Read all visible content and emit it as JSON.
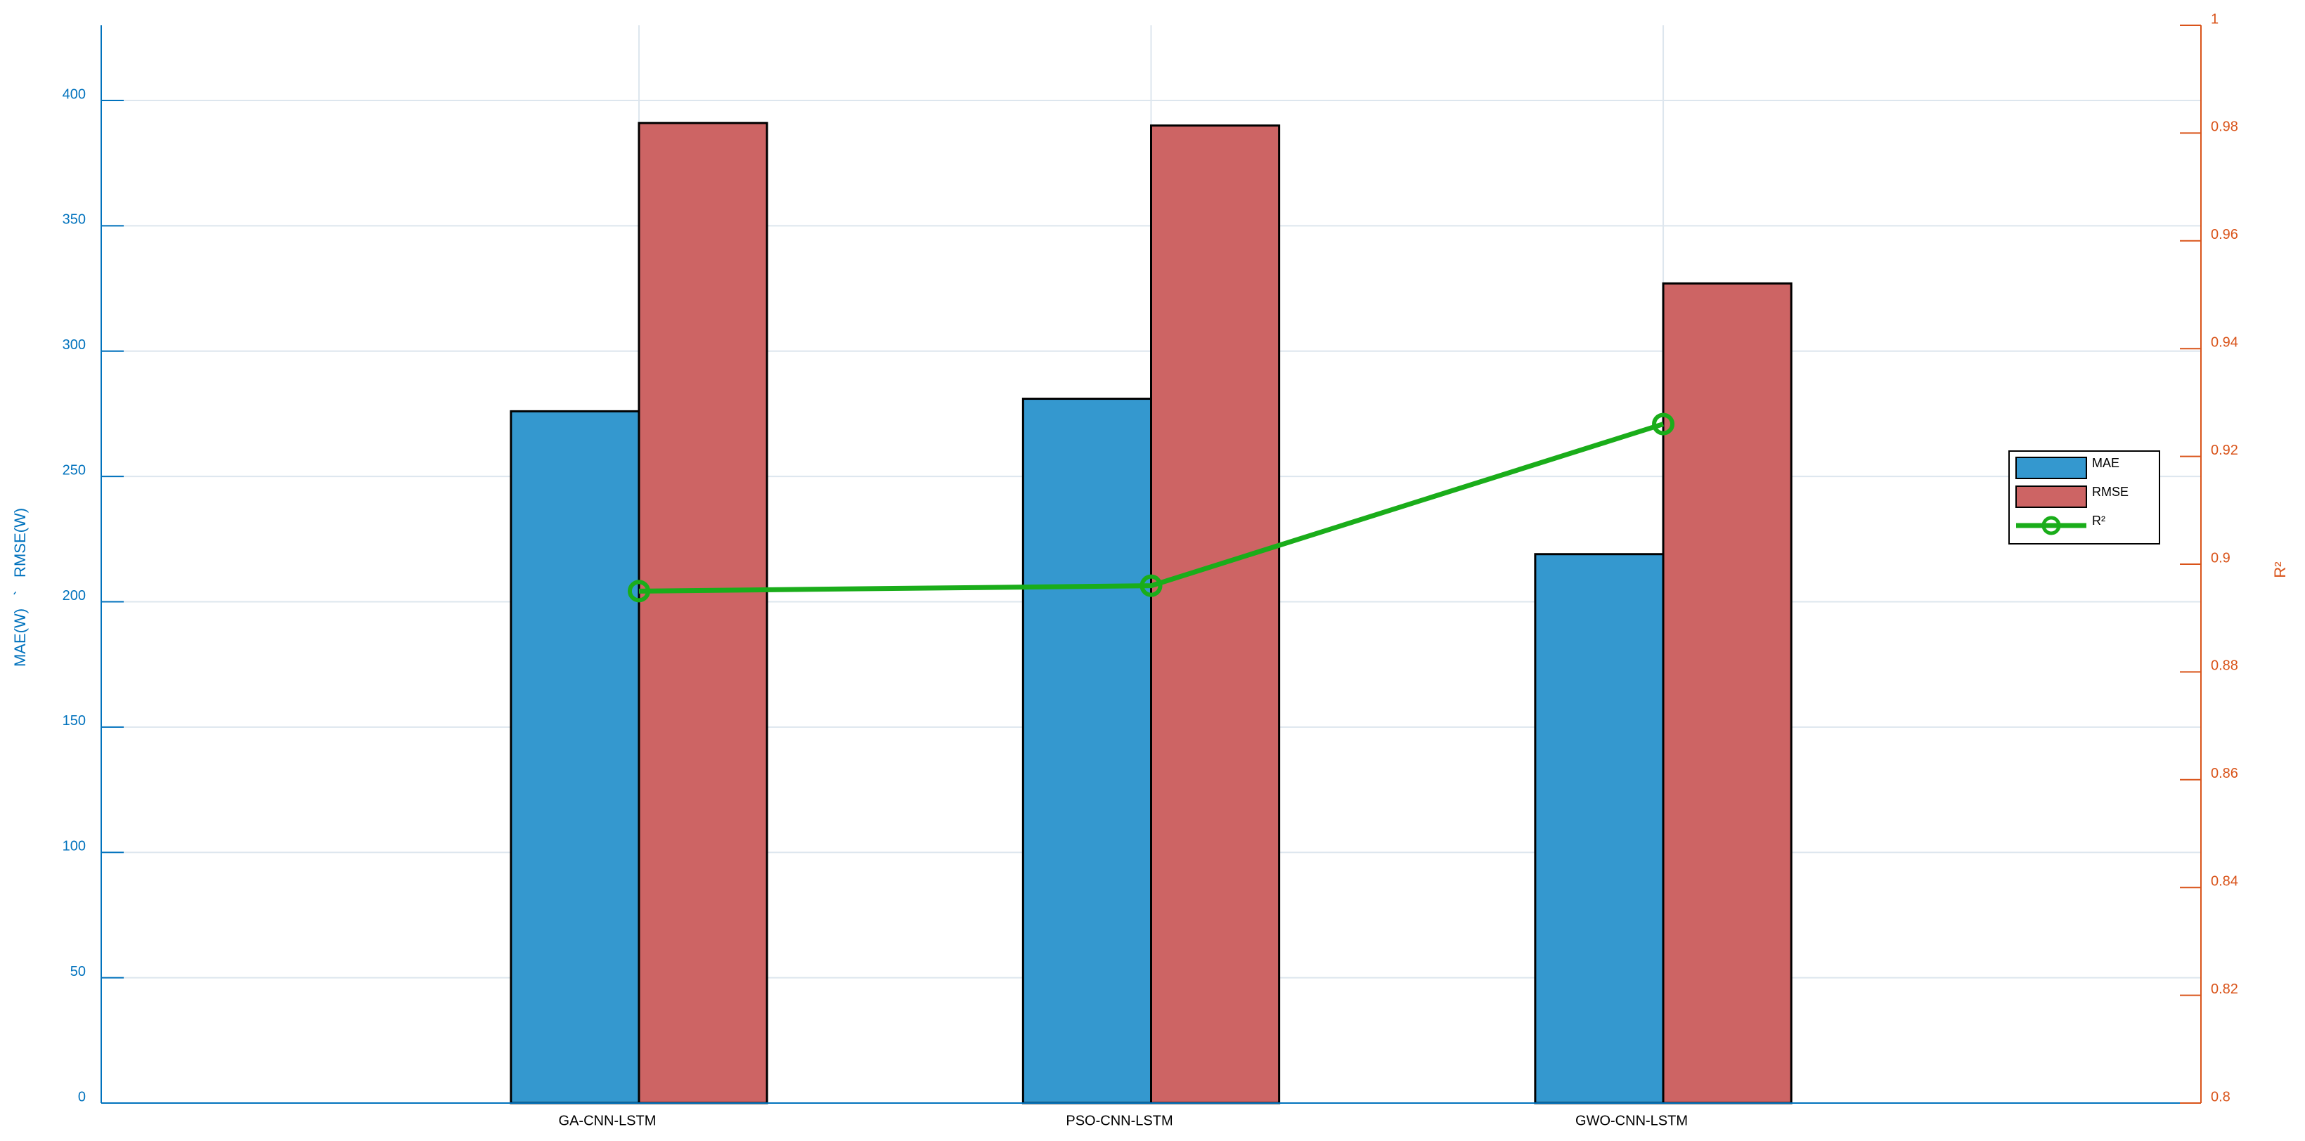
{
  "chart_data": {
    "type": "bar",
    "categories": [
      "GA-CNN-LSTM",
      "PSO-CNN-LSTM",
      "GWO-CNN-LSTM"
    ],
    "series": [
      {
        "name": "MAE",
        "color": "#3498cf",
        "values": [
          276,
          281,
          219
        ]
      },
      {
        "name": "RMSE",
        "color": "#cd6464",
        "values": [
          391,
          390,
          327
        ]
      },
      {
        "name": "R²",
        "color": "#1aad1a",
        "type": "line",
        "axis": "y2",
        "values": [
          0.895,
          0.896,
          0.926
        ]
      }
    ],
    "ylabel": "MAE(W)   `   RMSE(W)",
    "y2label": "R²",
    "ylim": [
      0,
      430
    ],
    "yticks": [
      0,
      50,
      100,
      150,
      200,
      250,
      300,
      350,
      400
    ],
    "y2lim": [
      0.8,
      1
    ],
    "y2ticks": [
      0.8,
      0.82,
      0.84,
      0.86,
      0.88,
      0.9,
      0.92,
      0.94,
      0.96,
      0.98,
      1
    ],
    "grid": true,
    "legend": "right"
  }
}
